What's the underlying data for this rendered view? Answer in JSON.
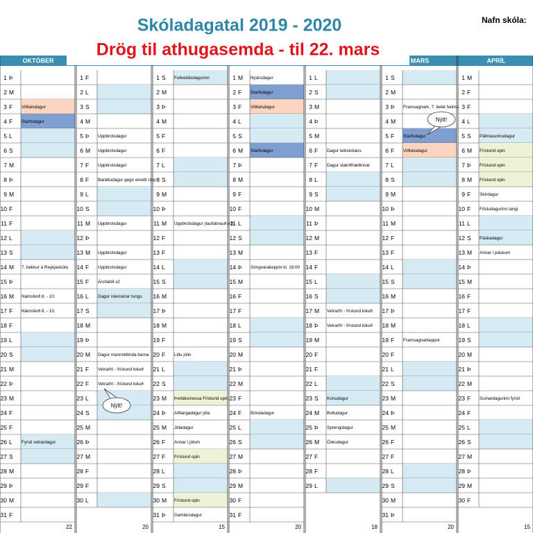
{
  "title": "Skóladagatal 2019 - 2020",
  "subtitle": "Drög til athugasemda - til 22. mars",
  "school_label": "Nafn skóla:",
  "callouts": [
    "Nýtt!",
    "Nýtt!"
  ],
  "months": [
    {
      "name": "OKTÓBER",
      "days": [
        1,
        2,
        3,
        4,
        5,
        6,
        7,
        8,
        9,
        10,
        11,
        12,
        13,
        14,
        15,
        16,
        17,
        18,
        19,
        20,
        21,
        22,
        23,
        24,
        25,
        26,
        27,
        28,
        29,
        30,
        31
      ],
      "weekdays": [
        "Þ",
        "M",
        "F",
        "F",
        "L",
        "S",
        "M",
        "Þ",
        "M",
        "F",
        "F",
        "L",
        "S",
        "M",
        "Þ",
        "M",
        "F",
        "F",
        "L",
        "S",
        "M",
        "Þ",
        "M",
        "F",
        "F",
        "L",
        "S",
        "M",
        "Þ",
        "M",
        "F"
      ],
      "notes": {
        "3": "Viðtalsdagur",
        "4": "Starfsdagur",
        "14": "7. bekkur á Reykjaskóla",
        "16": "Námsferð 8. - 10.",
        "17": "Námsferð 8. - 10.",
        "26": "Fyrsti vetrardagur"
      },
      "highlights": {
        "3": "#fbd5bf",
        "4": "#7f9fd1"
      },
      "count": 22
    },
    {
      "name": null,
      "days": [
        1,
        2,
        3,
        4,
        5,
        6,
        7,
        8,
        9,
        10,
        11,
        12,
        13,
        14,
        15,
        16,
        17,
        18,
        19,
        20,
        21,
        22,
        23,
        24,
        25,
        26,
        27,
        28,
        29,
        30
      ],
      "weekdays": [
        "F",
        "L",
        "S",
        "M",
        "Þ",
        "M",
        "F",
        "F",
        "L",
        "S",
        "M",
        "Þ",
        "M",
        "F",
        "F",
        "L",
        "S",
        "M",
        "Þ",
        "M",
        "F",
        "F",
        "L",
        "S",
        "M",
        "Þ",
        "M",
        "F",
        "F",
        "L"
      ],
      "notes": {
        "5": "Uppbrotsdagur",
        "6": "Uppbrotsdagur",
        "7": "Uppbrotsdagur",
        "8": "Baráttudagur gegn einelti Upp",
        "11": "Uppbrotsdagur",
        "13": "Uppbrotsdagur",
        "14": "Uppbrotsdagur",
        "15": "Árshátíð x2",
        "16": "Dagur íslenskrar tungu",
        "20": "Dagur mannréttinda barna",
        "21": "Vetrarfrí - frístund lokuð",
        "22": "Vetrarfrí - frístund lokuð"
      },
      "highlights": {},
      "count": 20
    },
    {
      "name": null,
      "days": [
        1,
        2,
        3,
        4,
        5,
        6,
        7,
        8,
        9,
        10,
        11,
        12,
        13,
        14,
        15,
        16,
        17,
        18,
        19,
        20,
        21,
        22,
        23,
        24,
        25,
        26,
        27,
        28,
        29,
        30,
        31
      ],
      "weekdays": [
        "S",
        "M",
        "Þ",
        "M",
        "F",
        "F",
        "L",
        "S",
        "M",
        "Þ",
        "M",
        "F",
        "F",
        "L",
        "S",
        "M",
        "Þ",
        "M",
        "F",
        "F",
        "L",
        "S",
        "M",
        "Þ",
        "M",
        "F",
        "F",
        "L",
        "S",
        "M",
        "Þ"
      ],
      "notes": {
        "1": "Fullveldisdagurinn",
        "11": "Uppbrotsdagur (laufabrauð o.fl.",
        "20": "Litlu jólin",
        "23": "Þorláksmessa Frístund opin",
        "24": "Aðfangadagur jóla",
        "25": "Jóladagur",
        "26": "Annar í jólum",
        "27": "Frístund opin",
        "30": "Frístund opin",
        "31": "Gamlársdagur"
      },
      "highlights": {
        "23": "#eef2d6",
        "27": "#eef2d6",
        "30": "#eef2d6"
      },
      "count": 15
    },
    {
      "name": null,
      "days": [
        1,
        2,
        3,
        4,
        5,
        6,
        7,
        8,
        9,
        10,
        11,
        12,
        13,
        14,
        15,
        16,
        17,
        18,
        19,
        20,
        21,
        22,
        23,
        24,
        25,
        26,
        27,
        28,
        29,
        30,
        31
      ],
      "weekdays": [
        "M",
        "F",
        "F",
        "L",
        "S",
        "M",
        "Þ",
        "M",
        "F",
        "F",
        "L",
        "S",
        "M",
        "Þ",
        "M",
        "F",
        "F",
        "L",
        "S",
        "M",
        "Þ",
        "M",
        "F",
        "F",
        "L",
        "S",
        "M",
        "Þ",
        "M",
        "F",
        "F"
      ],
      "notes": {
        "1": "Nýársdagur",
        "2": "Starfsdagur",
        "3": "Viðtalsdagur",
        "6": "Starfsdagur",
        "14": "Söngvarakeppni kl. 18:00",
        "24": "Bóndadagur"
      },
      "highlights": {
        "2": "#7f9fd1",
        "3": "#fbd5bf",
        "6": "#7f9fd1"
      },
      "count": 20
    },
    {
      "name": null,
      "days": [
        1,
        2,
        3,
        4,
        5,
        6,
        7,
        8,
        9,
        10,
        11,
        12,
        13,
        14,
        15,
        16,
        17,
        18,
        19,
        20,
        21,
        22,
        23,
        24,
        25,
        26,
        27,
        28,
        29
      ],
      "weekdays": [
        "L",
        "S",
        "M",
        "Þ",
        "M",
        "F",
        "F",
        "L",
        "S",
        "M",
        "Þ",
        "M",
        "F",
        "F",
        "L",
        "S",
        "M",
        "Þ",
        "M",
        "F",
        "F",
        "L",
        "S",
        "M",
        "Þ",
        "M",
        "F",
        "F",
        "L"
      ],
      "notes": {
        "6": "Dagur leikskólans",
        "7": "Dagur stærðfræðinnar",
        "17": "Vetrarfrí - frístund lokuð",
        "18": "Vetrarfrí - frístund lokuð",
        "23": "Konudagur",
        "24": "Bolludagur",
        "25": "Sprengidagur",
        "26": "Öskudagur"
      },
      "highlights": {},
      "count": 18
    },
    {
      "name": "MARS",
      "days": [
        1,
        2,
        3,
        4,
        5,
        6,
        7,
        8,
        9,
        10,
        11,
        12,
        13,
        14,
        15,
        16,
        17,
        18,
        19,
        20,
        21,
        22,
        23,
        24,
        25,
        26,
        27,
        28,
        29,
        30,
        31
      ],
      "weekdays": [
        "S",
        "M",
        "Þ",
        "M",
        "F",
        "F",
        "L",
        "S",
        "M",
        "Þ",
        "M",
        "F",
        "F",
        "L",
        "S",
        "M",
        "Þ",
        "M",
        "F",
        "F",
        "L",
        "S",
        "M",
        "Þ",
        "M",
        "F",
        "F",
        "L",
        "S",
        "M",
        "Þ"
      ],
      "notes": {
        "3": "Framsagnark. 7. bekk heima.",
        "5": "Starfsdagur",
        "6": "Viðtalsdagur",
        "19": "Framsagnarkeppni"
      },
      "highlights": {
        "5": "#7f9fd1",
        "6": "#fbd5bf"
      },
      "count": 20
    },
    {
      "name": "APRÍL",
      "days": [
        1,
        2,
        3,
        4,
        5,
        6,
        7,
        8,
        9,
        10,
        11,
        12,
        13,
        14,
        15,
        16,
        17,
        18,
        19,
        20,
        21,
        22,
        23,
        24,
        25,
        26,
        27,
        28,
        29,
        30
      ],
      "weekdays": [
        "M",
        "F",
        "F",
        "L",
        "S",
        "M",
        "Þ",
        "M",
        "F",
        "F",
        "L",
        "S",
        "M",
        "Þ",
        "M",
        "F",
        "F",
        "L",
        "S",
        "M",
        "Þ",
        "M",
        "F",
        "F",
        "L",
        "S",
        "M",
        "Þ",
        "M",
        "F"
      ],
      "notes": {
        "5": "Pálmasunnudagur",
        "6": "Frístund opin",
        "7": "Frístund opin",
        "8": "Frístund opin",
        "9": "Skírdagur",
        "10": "Föstudagurinn langi",
        "12": "Páskadagur",
        "13": "Annar í páskum",
        "23": "Sumardagurinn fyrsti"
      },
      "highlights": {
        "6": "#eef2d6",
        "7": "#eef2d6",
        "8": "#eef2d6"
      },
      "count": 15
    }
  ]
}
